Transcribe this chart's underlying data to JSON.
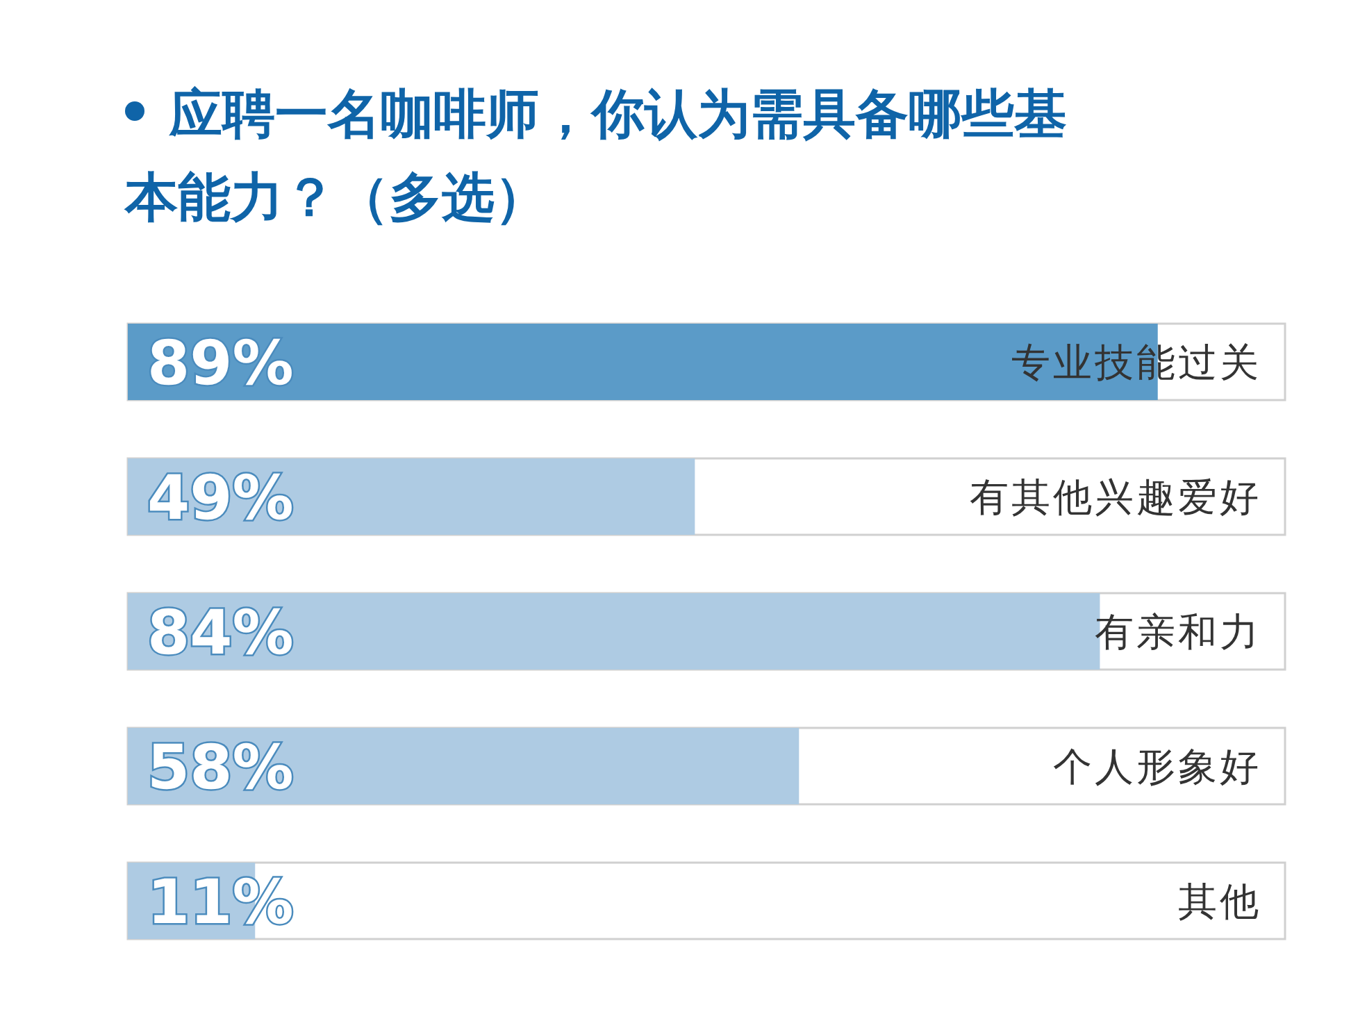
{
  "chart_data": {
    "type": "bar",
    "orientation": "horizontal",
    "title": "应聘一名咖啡师，你认为需具备哪些基本能力？（多选）",
    "categories": [
      "专业技能过关",
      "有其他兴趣爱好",
      "有亲和力",
      "个人形象好",
      "其他"
    ],
    "values": [
      89,
      49,
      84,
      58,
      11
    ],
    "value_labels": [
      "89%",
      "49%",
      "84%",
      "58%",
      "11%"
    ],
    "colors": [
      "#5b9bc8",
      "#aecbe3",
      "#aecbe3",
      "#aecbe3",
      "#aecbe3"
    ],
    "xlim": [
      0,
      100
    ]
  }
}
